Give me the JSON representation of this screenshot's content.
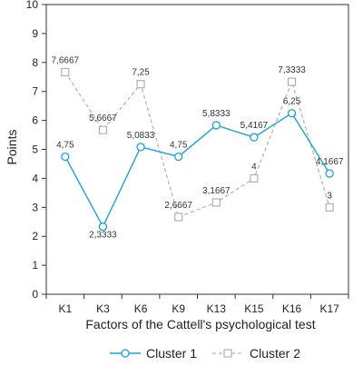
{
  "chart_data": {
    "type": "line",
    "xlabel": "Factors of the Cattell's psychological test",
    "ylabel": "Points",
    "categories": [
      "K1",
      "K3",
      "K6",
      "K9",
      "K13",
      "K15",
      "K16",
      "K17"
    ],
    "ylim": [
      0,
      10
    ],
    "yticks": [
      0,
      1,
      2,
      3,
      4,
      5,
      6,
      7,
      8,
      9,
      10
    ],
    "grid": false,
    "legend_position": "bottom",
    "series": [
      {
        "name": "Cluster 1",
        "values": [
          4.75,
          2.3333,
          5.0833,
          4.75,
          5.8333,
          5.4167,
          6.25,
          4.1667
        ],
        "labels": [
          "4,75",
          "2,3333",
          "5,0833",
          "4,75",
          "5,8333",
          "5,4167",
          "6,25",
          "4,1667"
        ],
        "color": "#1aa3d9",
        "line_style": "solid",
        "marker": "circle"
      },
      {
        "name": "Cluster 2",
        "values": [
          7.6667,
          5.6667,
          7.25,
          2.6667,
          3.1667,
          4,
          7.3333,
          3
        ],
        "labels": [
          "7,6667",
          "5,6667",
          "7,25",
          "2,6667",
          "3,1667",
          "4",
          "7,3333",
          "3"
        ],
        "color": "#aaaaaa",
        "line_style": "dashed",
        "marker": "square"
      }
    ]
  }
}
